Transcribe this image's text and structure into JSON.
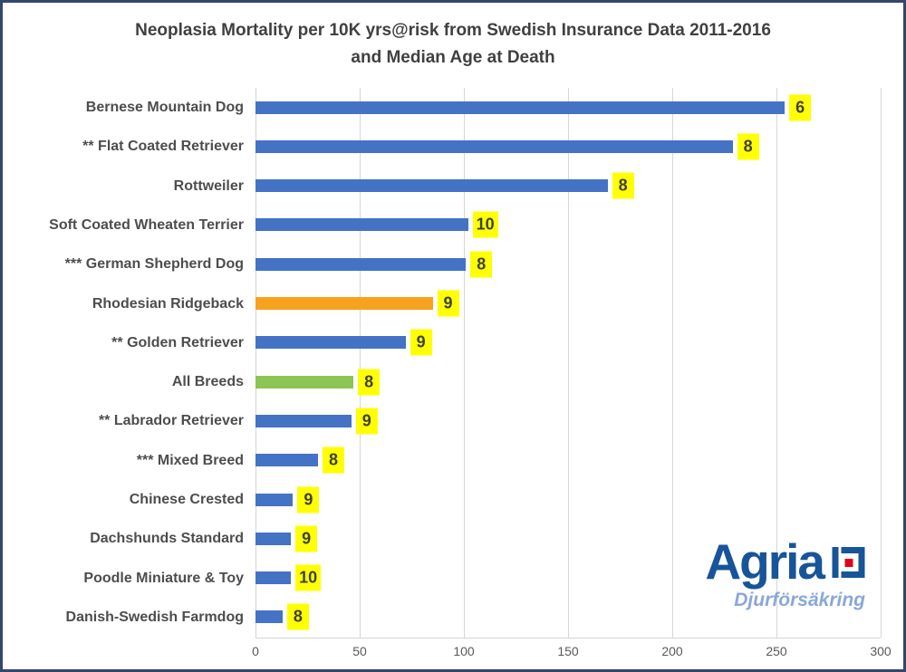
{
  "window": {
    "background": "#ffffff",
    "border_color": "#35466b"
  },
  "chart_data": {
    "type": "bar",
    "orientation": "horizontal",
    "title_line1": "Neoplasia Mortality per 10K yrs@risk from Swedish Insurance Data 2011-2016",
    "title_line2": "and Median Age at Death",
    "xlabel": "",
    "ylabel": "",
    "xlim": [
      0,
      300
    ],
    "x_ticks": [
      0,
      50,
      100,
      150,
      200,
      250,
      300
    ],
    "grid": true,
    "value_meaning": "neoplasia mortality per 10K years at risk",
    "annotation_meaning": "median age at death (years), shown in yellow box at bar end",
    "bars": [
      {
        "label": "Bernese Mountain Dog",
        "value": 254,
        "median_age": "6",
        "color": "#4472c4"
      },
      {
        "label": "** Flat Coated Retriever",
        "value": 229,
        "median_age": "8",
        "color": "#4472c4"
      },
      {
        "label": "Rottweiler",
        "value": 169,
        "median_age": "8",
        "color": "#4472c4"
      },
      {
        "label": "Soft Coated Wheaten Terrier",
        "value": 102,
        "median_age": "10",
        "color": "#4472c4"
      },
      {
        "label": "*** German Shepherd Dog",
        "value": 101,
        "median_age": "8",
        "color": "#4472c4"
      },
      {
        "label": "Rhodesian Ridgeback",
        "value": 85,
        "median_age": "9",
        "color": "#f6a21d"
      },
      {
        "label": "** Golden Retriever",
        "value": 72,
        "median_age": "9",
        "color": "#4472c4"
      },
      {
        "label": "All Breeds",
        "value": 47,
        "median_age": "8",
        "color": "#8cc455"
      },
      {
        "label": "** Labrador Retriever",
        "value": 46,
        "median_age": "9",
        "color": "#4472c4"
      },
      {
        "label": "*** Mixed Breed",
        "value": 30,
        "median_age": "8",
        "color": "#4472c4"
      },
      {
        "label": "Chinese Crested",
        "value": 18,
        "median_age": "9",
        "color": "#4472c4"
      },
      {
        "label": "Dachshunds Standard",
        "value": 17,
        "median_age": "9",
        "color": "#4472c4"
      },
      {
        "label": "Poodle Miniature & Toy",
        "value": 17,
        "median_age": "10",
        "color": "#4472c4"
      },
      {
        "label": "Danish-Swedish Farmdog",
        "value": 13,
        "median_age": "8",
        "color": "#4472c4"
      }
    ],
    "annotation_style": {
      "bg": "#ffff00",
      "text_color": "#3f3f3f"
    },
    "colors": {
      "default_bar": "#4472c4",
      "highlight_bar": "#f6a21d",
      "all_breeds_bar": "#8cc455",
      "gridline": "#d6d6d6"
    }
  },
  "logo": {
    "name": "Agria",
    "tagline": "Djurförsäkring",
    "brand_color": "#17549a",
    "tagline_color": "#8aa8d8",
    "mark_blue": "#17549a",
    "mark_red": "#e2001a"
  }
}
